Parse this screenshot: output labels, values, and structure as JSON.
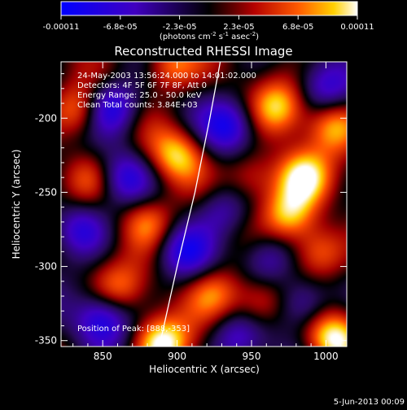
{
  "chart_data": {
    "type": "heatmap",
    "title": "Reconstructed RHESSI Image",
    "xlabel": "Heliocentric X (arcsec)",
    "ylabel": "Heliocentric Y (arcsec)",
    "xlim": [
      822,
      1014
    ],
    "ylim": [
      -354,
      -162
    ],
    "x_ticks": [
      {
        "v": 850,
        "label": "850"
      },
      {
        "v": 900,
        "label": "900"
      },
      {
        "v": 950,
        "label": "950"
      },
      {
        "v": 1000,
        "label": "1000"
      }
    ],
    "y_ticks": [
      {
        "v": -200,
        "label": "-200"
      },
      {
        "v": -250,
        "label": "-250"
      },
      {
        "v": -300,
        "label": "-300"
      },
      {
        "v": -350,
        "label": "-350"
      }
    ],
    "colorbar": {
      "min": -0.00011,
      "max": 0.00011,
      "tick_labels": [
        "-0.00011",
        "-6.8e-05",
        "-2.3e-05",
        "2.3e-05",
        "6.8e-05",
        "0.00011"
      ],
      "units_line1": "(photons cm",
      "units_exp1": "-2",
      "units_line2": " s",
      "units_exp2": "-1",
      "units_line3": " asec",
      "units_exp3": "-2",
      "units_close": ")"
    },
    "annotations": [
      "24-May-2003 13:56:24.000 to 14:01:02.000",
      "Detectors: 4F 5F 6F 7F 8F, Att 0",
      "Energy Range: 25.0 - 50.0 keV",
      "Clean     Total counts: 3.84E+03"
    ],
    "peak_label": "Position of Peak: [888,-353]",
    "peak": {
      "x": 888,
      "y": -353
    },
    "limb_curve": [
      {
        "x": 929,
        "y": -162
      },
      {
        "x": 922,
        "y": -200
      },
      {
        "x": 912,
        "y": -250
      },
      {
        "x": 900,
        "y": -300
      },
      {
        "x": 888,
        "y": -354
      }
    ],
    "bright_sources": [
      {
        "x": 890,
        "y": -352,
        "amp": 1.0
      },
      {
        "x": 1005,
        "y": -348,
        "amp": 0.95
      },
      {
        "x": 985,
        "y": -240,
        "amp": 0.9
      },
      {
        "x": 975,
        "y": -265,
        "amp": 0.85
      },
      {
        "x": 968,
        "y": -192,
        "amp": 0.75
      },
      {
        "x": 1005,
        "y": -205,
        "amp": 0.7
      },
      {
        "x": 995,
        "y": -290,
        "amp": 0.65
      },
      {
        "x": 835,
        "y": -195,
        "amp": 0.7
      },
      {
        "x": 895,
        "y": -165,
        "amp": 0.7
      },
      {
        "x": 900,
        "y": -225,
        "amp": 0.75
      },
      {
        "x": 880,
        "y": -270,
        "amp": 0.7
      },
      {
        "x": 925,
        "y": -318,
        "amp": 0.65
      },
      {
        "x": 955,
        "y": -325,
        "amp": 0.6
      },
      {
        "x": 860,
        "y": -315,
        "amp": 0.55
      },
      {
        "x": 840,
        "y": -240,
        "amp": 0.5
      },
      {
        "x": 950,
        "y": -240,
        "amp": 0.55
      }
    ],
    "dark_sources": [
      {
        "x": 855,
        "y": -193,
        "amp": 1.0
      },
      {
        "x": 935,
        "y": -205,
        "amp": 0.8
      },
      {
        "x": 865,
        "y": -240,
        "amp": 0.7
      },
      {
        "x": 835,
        "y": -275,
        "amp": 0.8
      },
      {
        "x": 905,
        "y": -290,
        "amp": 0.7
      },
      {
        "x": 850,
        "y": -335,
        "amp": 0.9
      },
      {
        "x": 960,
        "y": -295,
        "amp": 0.7
      },
      {
        "x": 985,
        "y": -325,
        "amp": 0.75
      },
      {
        "x": 940,
        "y": -350,
        "amp": 0.6
      },
      {
        "x": 1000,
        "y": -180,
        "amp": 0.6
      },
      {
        "x": 930,
        "y": -262,
        "amp": 0.6
      }
    ]
  },
  "footer": {
    "date": "5-Jun-2013 00:09"
  }
}
